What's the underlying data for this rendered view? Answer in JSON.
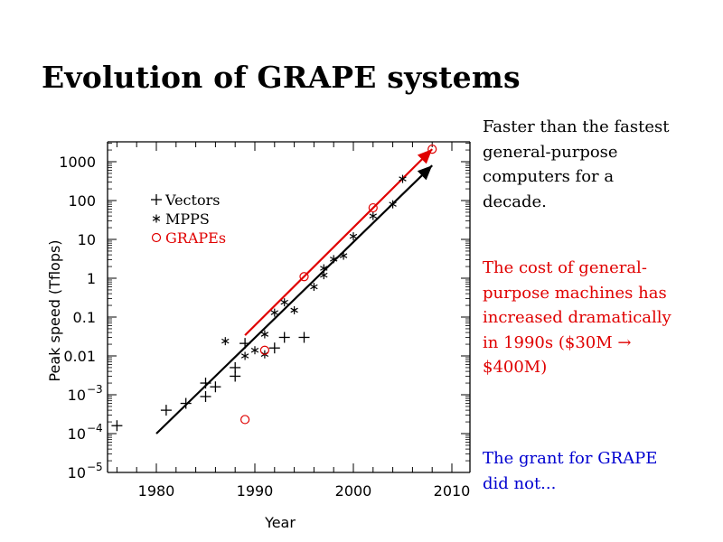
{
  "slide": {
    "title": "Evolution of GRAPE systems",
    "paragraphs": [
      {
        "text": "Faster than the fastest general-purpose computers for a decade.",
        "color": "#000000"
      },
      {
        "text": "The cost of general-purpose machines has increased dramatically in 1990s ($30M → $400M)",
        "color": "#e00000"
      },
      {
        "text": "The grant for GRAPE did not...",
        "color": "#0000d0"
      }
    ]
  },
  "chart_data": {
    "type": "scatter",
    "title": "",
    "xlabel": "Year",
    "ylabel": "Peak speed (Tflops)",
    "xlim": [
      1975,
      2010
    ],
    "ylim_log10": [
      -5,
      3.5
    ],
    "y_scale": "log",
    "x_ticks": [
      1980,
      1990,
      2000,
      2010
    ],
    "y_ticks": [
      {
        "value": 1000,
        "label": "1000"
      },
      {
        "value": 100,
        "label": "100"
      },
      {
        "value": 10,
        "label": "10"
      },
      {
        "value": 1,
        "label": "1"
      },
      {
        "value": 0.1,
        "label": "0.1"
      },
      {
        "value": 0.01,
        "label": "0.01"
      },
      {
        "value": 0.001,
        "label": "10",
        "exp": "−3"
      },
      {
        "value": 0.0001,
        "label": "10",
        "exp": "−4"
      },
      {
        "value": 1e-05,
        "label": "10",
        "exp": "−5"
      }
    ],
    "legend": {
      "placement": "top-left",
      "entries": [
        {
          "name": "Vectors",
          "marker": "+",
          "color": "#000000"
        },
        {
          "name": "MPPS",
          "marker": "*",
          "color": "#000000"
        },
        {
          "name": "GRAPEs",
          "marker": "o",
          "color": "#e00000"
        }
      ]
    },
    "series": [
      {
        "name": "Vectors",
        "marker": "+",
        "color": "#000000",
        "points": [
          [
            1976,
            0.00016
          ],
          [
            1981,
            0.0004
          ],
          [
            1983,
            0.0006
          ],
          [
            1985,
            0.002
          ],
          [
            1985,
            0.0009
          ],
          [
            1986,
            0.0016
          ],
          [
            1988,
            0.005
          ],
          [
            1988,
            0.003
          ],
          [
            1989,
            0.021
          ],
          [
            1992,
            0.016
          ],
          [
            1993,
            0.03
          ],
          [
            1995,
            0.03
          ]
        ]
      },
      {
        "name": "MPPS",
        "marker": "*",
        "color": "#000000",
        "points": [
          [
            1987,
            0.024
          ],
          [
            1989,
            0.01
          ],
          [
            1990,
            0.014
          ],
          [
            1991,
            0.011
          ],
          [
            1991,
            0.036
          ],
          [
            1992,
            0.13
          ],
          [
            1993,
            0.24
          ],
          [
            1994,
            0.15
          ],
          [
            1996,
            0.6
          ],
          [
            1997,
            1.2
          ],
          [
            1997,
            1.8
          ],
          [
            1998,
            3.1
          ],
          [
            1999,
            3.8
          ],
          [
            2000,
            12
          ],
          [
            2002,
            40
          ],
          [
            2004,
            80
          ],
          [
            2005,
            360
          ]
        ]
      },
      {
        "name": "GRAPEs",
        "marker": "o",
        "color": "#e00000",
        "points": [
          [
            1989,
            0.00023
          ],
          [
            1991,
            0.014
          ],
          [
            1995,
            1.1
          ],
          [
            2002,
            65
          ],
          [
            2008,
            2100
          ]
        ]
      }
    ],
    "trend_lines": [
      {
        "name": "general-purpose trend",
        "color": "#000000",
        "from": [
          1980,
          0.0001
        ],
        "to": [
          2008,
          800
        ],
        "arrow": true
      },
      {
        "name": "GRAPE trend",
        "color": "#e00000",
        "from": [
          1989,
          0.034
        ],
        "to": [
          2008,
          2100
        ],
        "arrow": true
      }
    ]
  }
}
